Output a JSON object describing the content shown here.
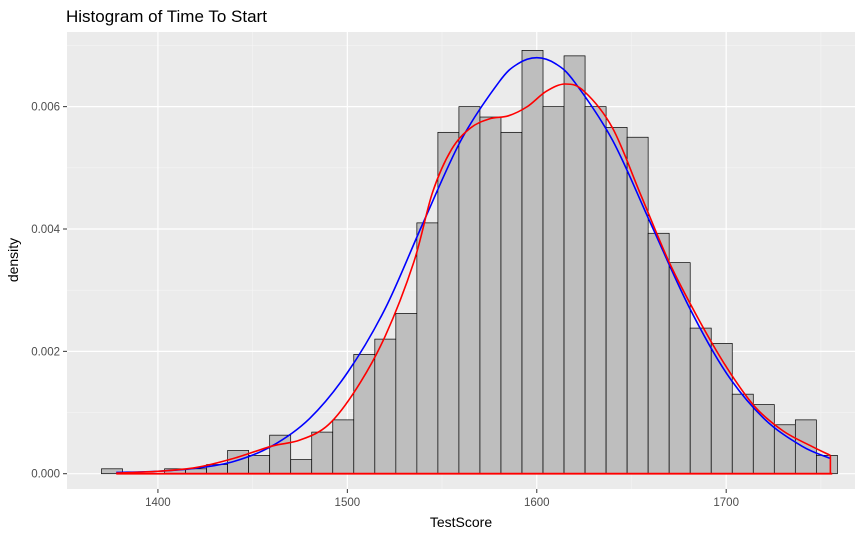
{
  "chart_data": {
    "type": "histogram",
    "title": "Histogram of Time To Start",
    "xlabel": "TestScore",
    "ylabel": "density",
    "xlim": [
      1352,
      1768
    ],
    "ylim": [
      -0.00025,
      0.00722
    ],
    "x_ticks": [
      1400,
      1500,
      1600,
      1700
    ],
    "y_ticks": [
      0.0,
      0.002,
      0.004,
      0.006
    ],
    "x_tick_labels": [
      "1400",
      "1500",
      "1600",
      "1700"
    ],
    "y_tick_labels": [
      "0.000",
      "0.002",
      "0.004",
      "0.006"
    ],
    "grid": true,
    "background": "#ebebeb",
    "bar_fill": "#bebebe",
    "bar_edge": "#000000",
    "bin_width": 11.1,
    "bins": [
      {
        "x0": 1370.2,
        "x1": 1381.3,
        "density": 8e-05
      },
      {
        "x0": 1381.3,
        "x1": 1392.4,
        "density": 0.0
      },
      {
        "x0": 1392.4,
        "x1": 1403.5,
        "density": 0.0
      },
      {
        "x0": 1403.5,
        "x1": 1414.6,
        "density": 8e-05
      },
      {
        "x0": 1414.6,
        "x1": 1425.7,
        "density": 8e-05
      },
      {
        "x0": 1425.7,
        "x1": 1436.8,
        "density": 0.00015
      },
      {
        "x0": 1436.8,
        "x1": 1447.9,
        "density": 0.00038
      },
      {
        "x0": 1447.9,
        "x1": 1459.0,
        "density": 0.0003
      },
      {
        "x0": 1459.0,
        "x1": 1470.1,
        "density": 0.00063
      },
      {
        "x0": 1470.1,
        "x1": 1481.2,
        "density": 0.00023
      },
      {
        "x0": 1481.2,
        "x1": 1492.3,
        "density": 0.00068
      },
      {
        "x0": 1492.3,
        "x1": 1503.4,
        "density": 0.00088
      },
      {
        "x0": 1503.4,
        "x1": 1514.5,
        "density": 0.00195
      },
      {
        "x0": 1514.5,
        "x1": 1525.6,
        "density": 0.0022
      },
      {
        "x0": 1525.6,
        "x1": 1536.7,
        "density": 0.00262
      },
      {
        "x0": 1536.7,
        "x1": 1547.8,
        "density": 0.0041
      },
      {
        "x0": 1547.8,
        "x1": 1558.9,
        "density": 0.00558
      },
      {
        "x0": 1558.9,
        "x1": 1570.0,
        "density": 0.006
      },
      {
        "x0": 1570.0,
        "x1": 1581.1,
        "density": 0.00583
      },
      {
        "x0": 1581.1,
        "x1": 1592.2,
        "density": 0.00558
      },
      {
        "x0": 1592.2,
        "x1": 1603.3,
        "density": 0.00692
      },
      {
        "x0": 1603.3,
        "x1": 1614.4,
        "density": 0.006
      },
      {
        "x0": 1614.4,
        "x1": 1625.5,
        "density": 0.00683
      },
      {
        "x0": 1625.5,
        "x1": 1636.6,
        "density": 0.006
      },
      {
        "x0": 1636.6,
        "x1": 1647.7,
        "density": 0.00566
      },
      {
        "x0": 1647.7,
        "x1": 1658.8,
        "density": 0.0055
      },
      {
        "x0": 1658.8,
        "x1": 1669.9,
        "density": 0.00393
      },
      {
        "x0": 1669.9,
        "x1": 1681.0,
        "density": 0.00345
      },
      {
        "x0": 1681.0,
        "x1": 1692.1,
        "density": 0.00238
      },
      {
        "x0": 1692.1,
        "x1": 1703.2,
        "density": 0.00213
      },
      {
        "x0": 1703.2,
        "x1": 1714.3,
        "density": 0.0013
      },
      {
        "x0": 1714.3,
        "x1": 1725.4,
        "density": 0.00113
      },
      {
        "x0": 1725.4,
        "x1": 1736.5,
        "density": 0.0008
      },
      {
        "x0": 1736.5,
        "x1": 1747.6,
        "density": 0.00088
      },
      {
        "x0": 1747.6,
        "x1": 1758.7,
        "density": 0.0003
      }
    ],
    "curves": [
      {
        "color": "#0000ff",
        "points": [
          [
            1378,
            2e-05
          ],
          [
            1400,
            4e-05
          ],
          [
            1420,
            9e-05
          ],
          [
            1440,
            0.0002
          ],
          [
            1460,
            0.00045
          ],
          [
            1480,
            0.0009
          ],
          [
            1500,
            0.00165
          ],
          [
            1520,
            0.0027
          ],
          [
            1540,
            0.0041
          ],
          [
            1560,
            0.00545
          ],
          [
            1580,
            0.0064
          ],
          [
            1590,
            0.0067
          ],
          [
            1600,
            0.0068
          ],
          [
            1610,
            0.0067
          ],
          [
            1620,
            0.0064
          ],
          [
            1640,
            0.00545
          ],
          [
            1660,
            0.0041
          ],
          [
            1680,
            0.00275
          ],
          [
            1700,
            0.00165
          ],
          [
            1720,
            0.0009
          ],
          [
            1740,
            0.00045
          ],
          [
            1755,
            0.00025
          ]
        ]
      },
      {
        "color": "#ff0000",
        "points": [
          [
            1378,
            1e-05
          ],
          [
            1400,
            4e-05
          ],
          [
            1420,
            0.0001
          ],
          [
            1440,
            0.00025
          ],
          [
            1460,
            0.00045
          ],
          [
            1475,
            0.00055
          ],
          [
            1490,
            0.0008
          ],
          [
            1505,
            0.0014
          ],
          [
            1520,
            0.00225
          ],
          [
            1535,
            0.00345
          ],
          [
            1545,
            0.0046
          ],
          [
            1555,
            0.0053
          ],
          [
            1565,
            0.00565
          ],
          [
            1575,
            0.0058
          ],
          [
            1585,
            0.00585
          ],
          [
            1595,
            0.006
          ],
          [
            1605,
            0.00625
          ],
          [
            1615,
            0.00637
          ],
          [
            1625,
            0.00625
          ],
          [
            1640,
            0.00565
          ],
          [
            1655,
            0.00455
          ],
          [
            1670,
            0.00345
          ],
          [
            1685,
            0.00255
          ],
          [
            1700,
            0.00175
          ],
          [
            1715,
            0.0011
          ],
          [
            1730,
            0.0007
          ],
          [
            1745,
            0.00045
          ],
          [
            1755,
            0.0003
          ]
        ]
      }
    ],
    "baseline": {
      "color": "#ff0000",
      "x0": 1378,
      "x1": 1756
    }
  }
}
